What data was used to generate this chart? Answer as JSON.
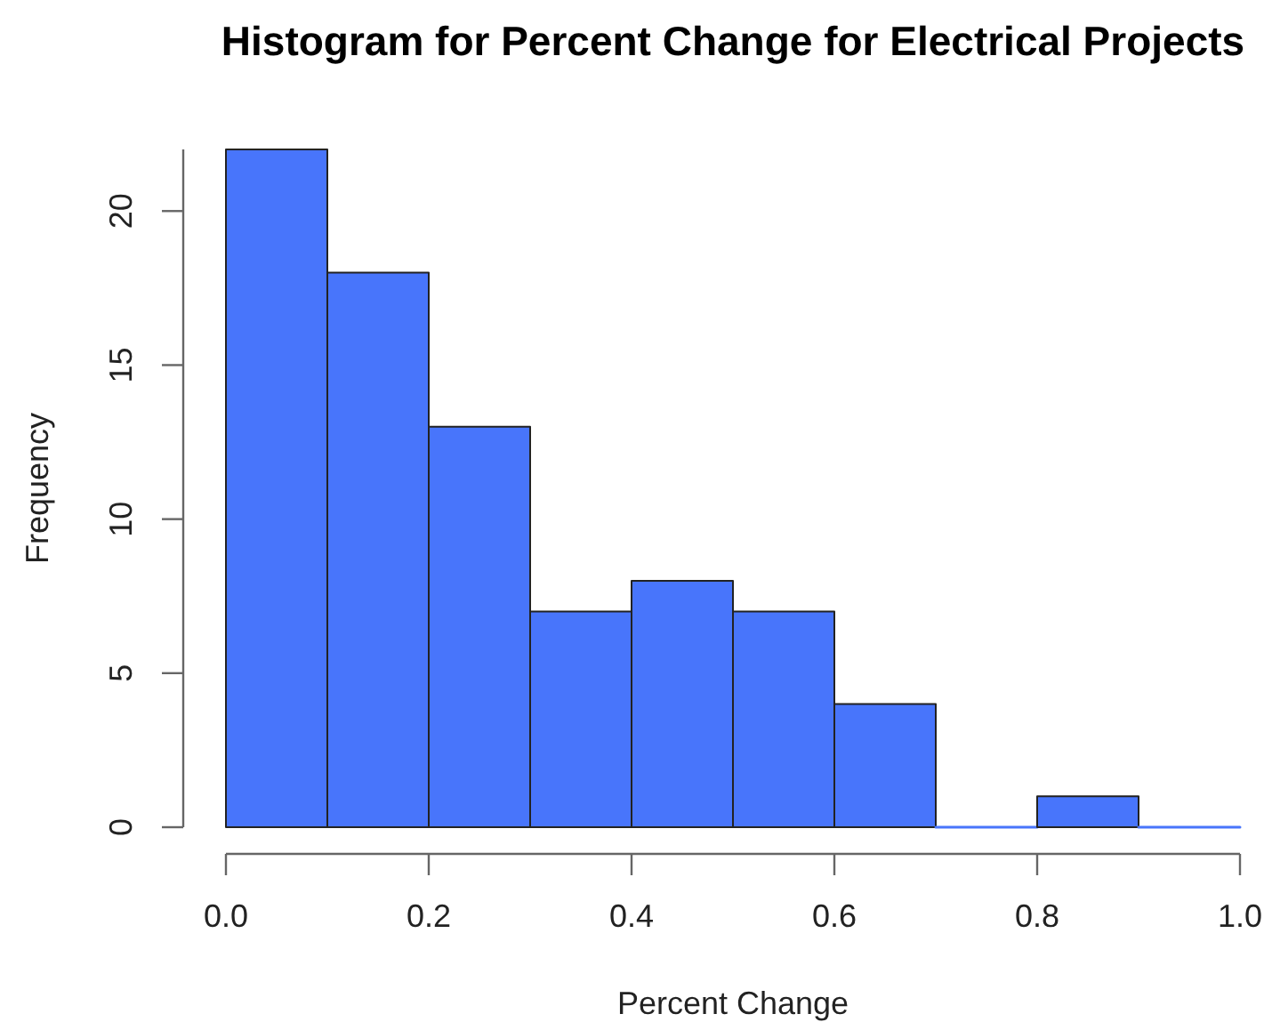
{
  "chart_data": {
    "type": "histogram",
    "title": "Histogram for Percent Change for Electrical Projects",
    "xlabel": "Percent Change",
    "ylabel": "Frequency",
    "bins": [
      0,
      0.1,
      0.2,
      0.3,
      0.4,
      0.5,
      0.6,
      0.7,
      0.8,
      0.9,
      1.0
    ],
    "values": [
      22,
      18,
      13,
      7,
      8,
      7,
      4,
      0,
      1,
      0
    ],
    "color": "#4875fb",
    "xlim": [
      0,
      1
    ],
    "xticks": [
      {
        "value": 0,
        "label": "0.0"
      },
      0.2,
      0.4,
      0.6,
      0.8,
      {
        "value": 1,
        "label": "1.0"
      }
    ],
    "ylim": [
      0,
      22
    ],
    "yticks": [
      0,
      5,
      10,
      15,
      20
    ]
  }
}
